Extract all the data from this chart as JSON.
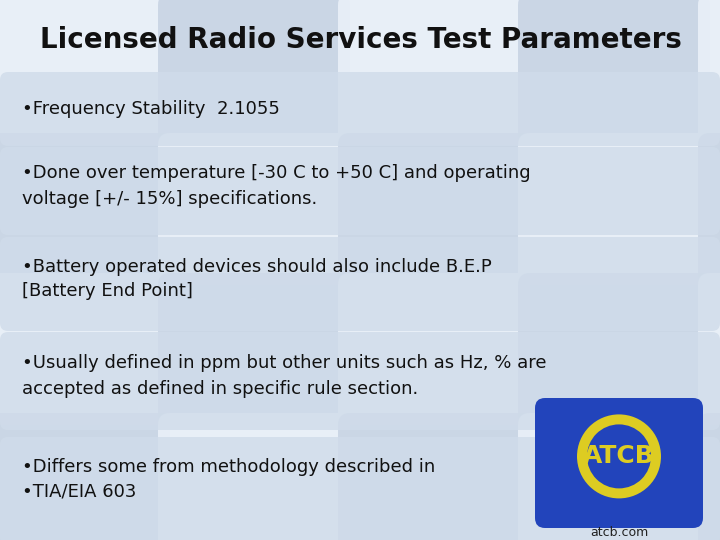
{
  "title": "Licensed Radio Services Test Parameters",
  "title_fontsize": 20,
  "title_color": "#111111",
  "bullet_points": [
    "•Frequency Stability  2.1055",
    "•Done over temperature [-30 C to +50 C] and operating\nvoltage [+/- 15%] specifications.",
    "•Battery operated devices should also include B.E.P\n[Battery End Point]",
    "•Usually defined in ppm but other units such as Hz, % are\naccepted as defined in specific rule section.",
    "•Differs some from methodology described in\n•TIA/EIA 603"
  ],
  "bullet_fontsize": 13.0,
  "bullet_color": "#111111",
  "bg_color": "#e0e8f2",
  "tile_color": "#c8d4e4",
  "tile_light_color": "#eaf0f8",
  "card_color": "#d0dcea",
  "atcb_bg_color": "#2244bb",
  "atcb_ring_color": "#ddcc22",
  "atcb_text_color": "#ddcc22",
  "atcb_url": "atcb.com"
}
